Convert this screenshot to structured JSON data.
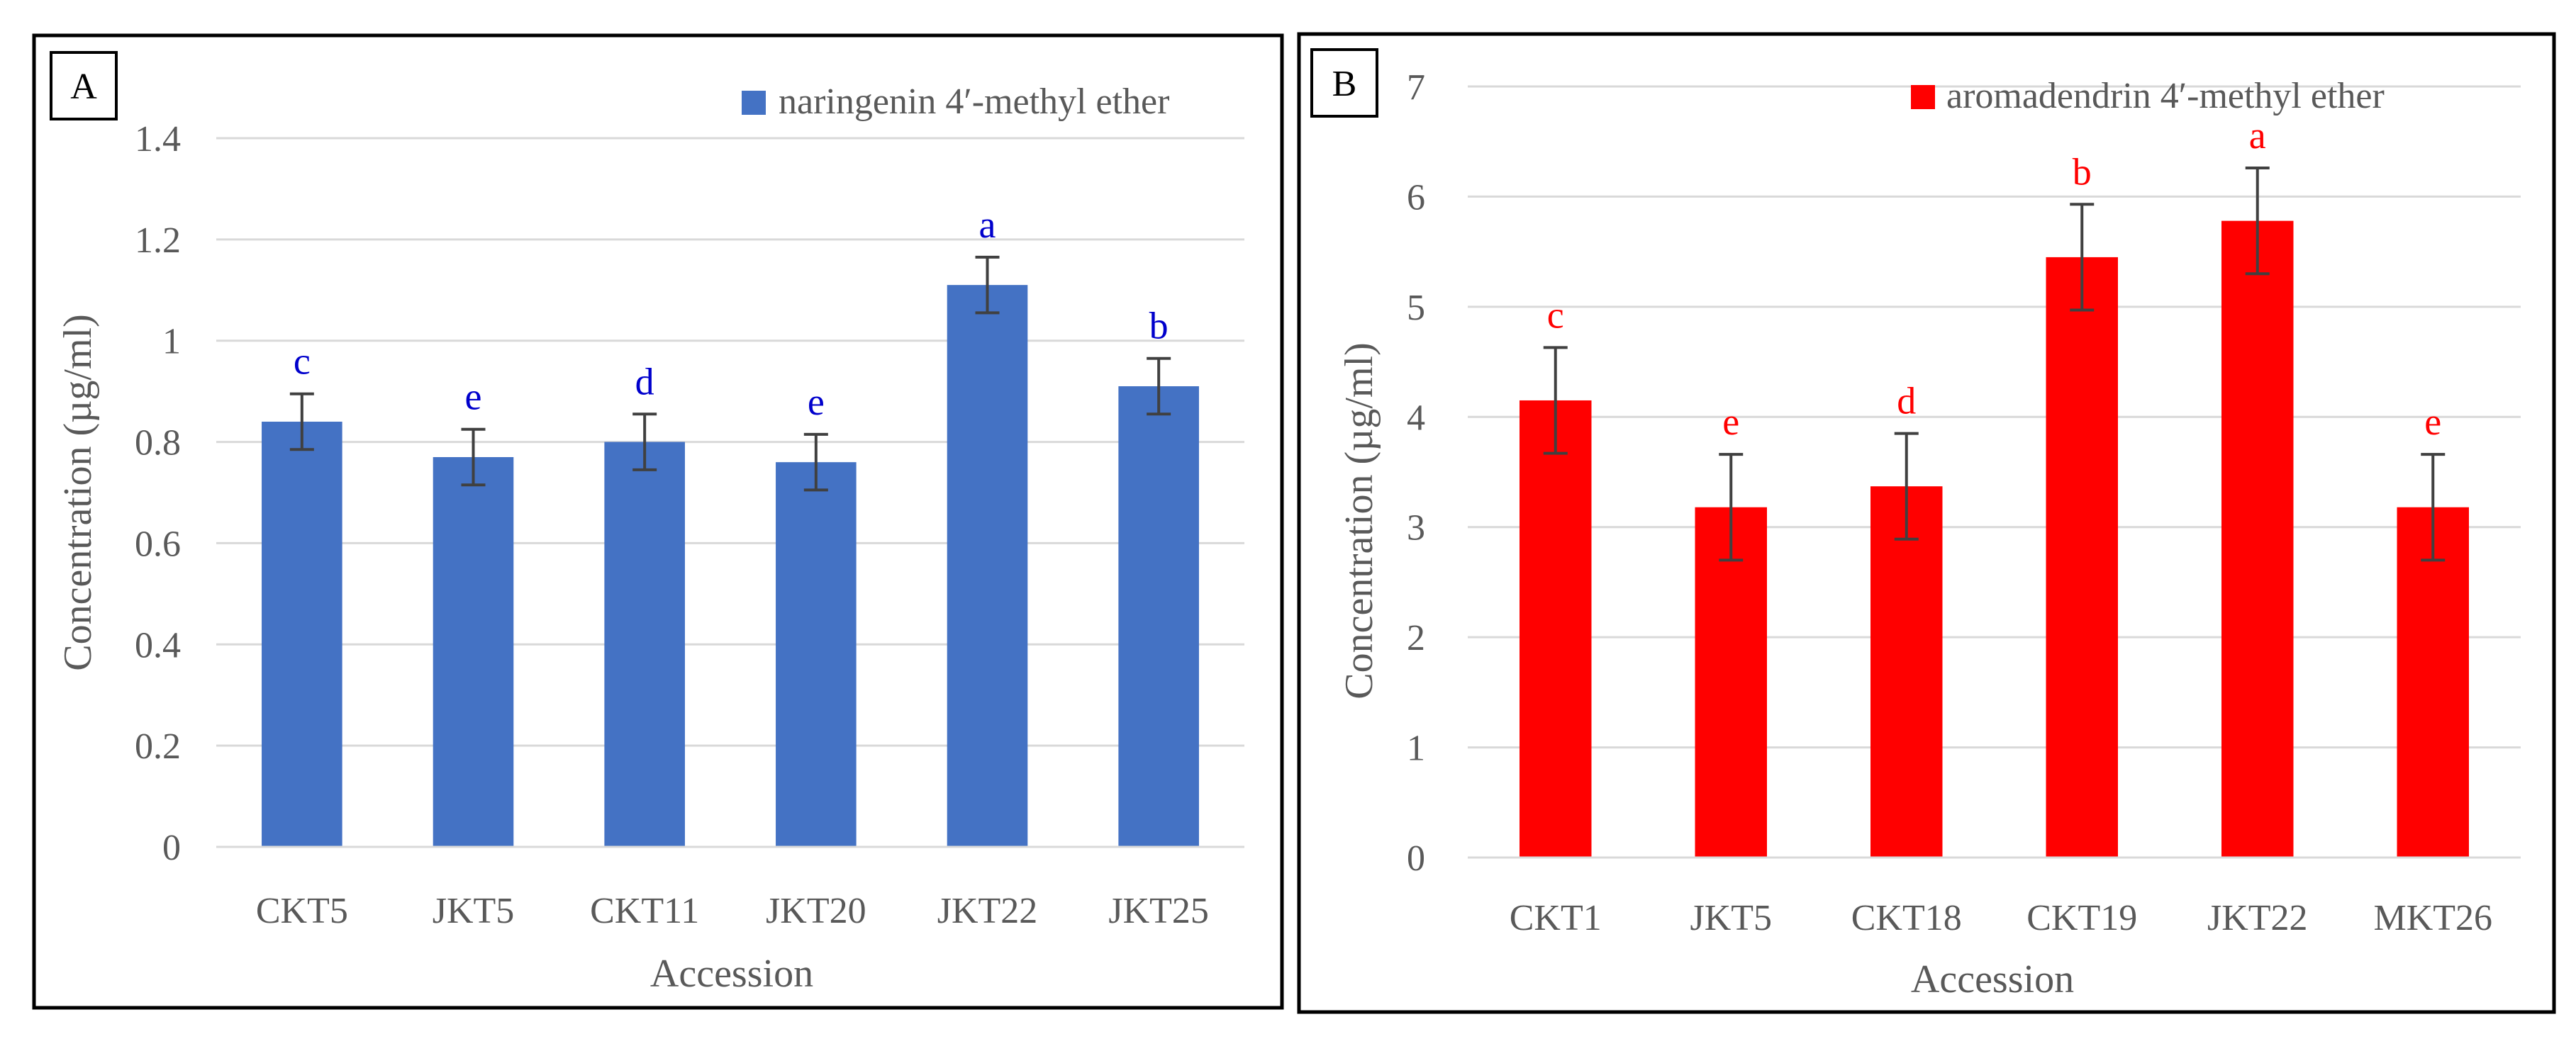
{
  "chart_data": [
    {
      "type": "bar",
      "panel_label": "A",
      "legend_label": "naringenin 4′-methyl ether",
      "legend_position": "top-right",
      "xlabel": "Accession",
      "ylabel": "Concentration (µg/ml)",
      "categories": [
        "CKT5",
        "JKT5",
        "CKT11",
        "JKT20",
        "JKT22",
        "JKT25"
      ],
      "values": [
        0.84,
        0.77,
        0.8,
        0.76,
        1.11,
        0.91
      ],
      "errors": [
        0.055,
        0.055,
        0.055,
        0.055,
        0.055,
        0.055
      ],
      "significance": [
        "c",
        "e",
        "d",
        "e",
        "a",
        "b"
      ],
      "ylim": [
        0,
        1.4
      ],
      "yticks": [
        0,
        0.2,
        0.4,
        0.6,
        0.8,
        1,
        1.2,
        1.4
      ],
      "ytick_labels": [
        "0",
        "0.2",
        "0.4",
        "0.6",
        "0.8",
        "1",
        "1.2",
        "1.4"
      ],
      "grid": true,
      "colors": {
        "bar": "#4472C4",
        "sig_text": "#0000CC",
        "error": "#404040",
        "grid": "#D9D9D9"
      }
    },
    {
      "type": "bar",
      "panel_label": "B",
      "legend_label": "aromadendrin 4′-methyl ether",
      "legend_position": "top-right",
      "xlabel": "Accession",
      "ylabel": "Concentration (µg/ml)",
      "categories": [
        "CKT1",
        "JKT5",
        "CKT18",
        "CKT19",
        "JKT22",
        "MKT26"
      ],
      "values": [
        4.15,
        3.18,
        3.37,
        5.45,
        5.78,
        3.18
      ],
      "errors": [
        0.48,
        0.48,
        0.48,
        0.48,
        0.48,
        0.48
      ],
      "significance": [
        "c",
        "e",
        "d",
        "b",
        "a",
        "e"
      ],
      "ylim": [
        0,
        7
      ],
      "yticks": [
        0,
        1,
        2,
        3,
        4,
        5,
        6,
        7
      ],
      "ytick_labels": [
        "0",
        "1",
        "2",
        "3",
        "4",
        "5",
        "6",
        "7"
      ],
      "grid": true,
      "colors": {
        "bar": "#FF0000",
        "sig_text": "#FF0000",
        "error": "#404040",
        "grid": "#D9D9D9"
      }
    }
  ]
}
